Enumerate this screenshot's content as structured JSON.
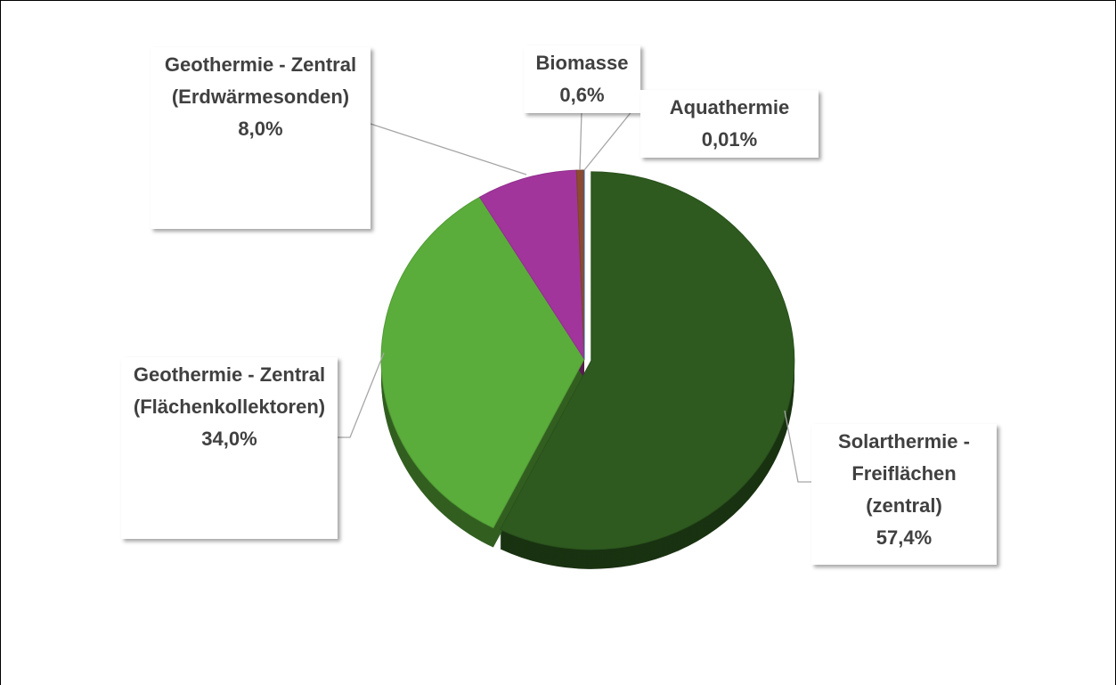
{
  "chart_data": {
    "type": "pie",
    "categories": [
      "Solarthermie - Freiflächen (zentral)",
      "Geothermie - Zentral (Flächenkollektoren)",
      "Geothermie - Zentral (Erdwärmesonden)",
      "Biomasse",
      "Aquathermie"
    ],
    "values": [
      57.4,
      34.0,
      8.0,
      0.6,
      0.01
    ],
    "value_labels": [
      "57,4%",
      "34,0%",
      "8,0%",
      "0,6%",
      "0,01%"
    ],
    "colors": [
      "#2e5a1f",
      "#5bad3b",
      "#a1359b",
      "#8c4a30",
      "#3b6fb0"
    ]
  }
}
